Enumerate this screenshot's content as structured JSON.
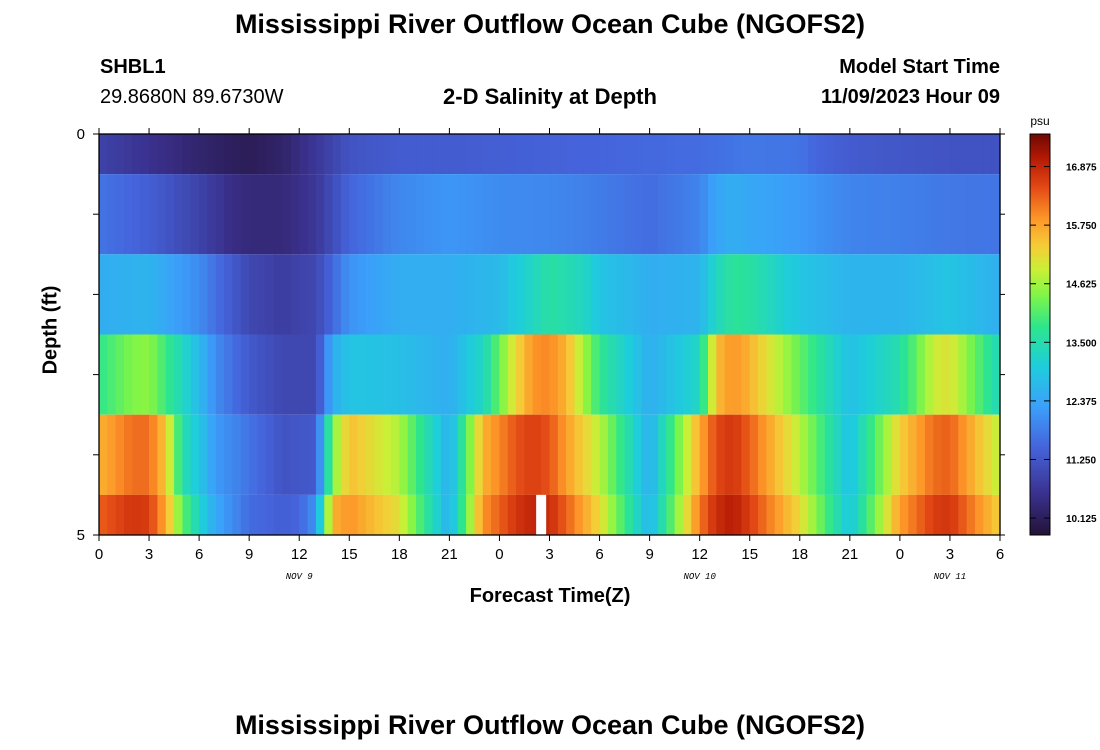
{
  "title": "Mississippi River Outflow Ocean Cube (NGOFS2)",
  "title_repeat": "Mississippi River Outflow Ocean Cube (NGOFS2)",
  "station": {
    "id": "SHBL1",
    "coords": "29.8680N  89.6730W"
  },
  "model_start": {
    "label": "Model Start Time",
    "value": "11/09/2023 Hour 09"
  },
  "chart_data": {
    "type": "heatmap",
    "title": "2-D Salinity at Depth",
    "xlabel": "Forecast Time(Z)",
    "ylabel": "Depth (ft)",
    "x_ticks": [
      "0",
      "3",
      "6",
      "9",
      "12",
      "15",
      "18",
      "21",
      "0",
      "3",
      "6",
      "9",
      "12",
      "15",
      "18",
      "21",
      "0",
      "3",
      "6"
    ],
    "day_labels": [
      {
        "label": "NOV 9",
        "at_hour": 12
      },
      {
        "label": "NOV 10",
        "at_hour": 36
      },
      {
        "label": "NOV 11",
        "at_hour": 51
      }
    ],
    "xlim_hours": [
      0,
      54
    ],
    "y_ticks": [
      "0",
      "5"
    ],
    "ylim_ft": [
      0,
      5
    ],
    "colorbar": {
      "units": "psu",
      "ticks": [
        10.125,
        11.25,
        12.375,
        13.5,
        14.625,
        15.75,
        16.875
      ],
      "range": [
        9.8,
        17.5
      ]
    },
    "gap": {
      "hour_start": 26.2,
      "hour_end": 26.8,
      "layer": 5
    },
    "layers": [
      {
        "depth_ft": [
          0.0,
          0.5
        ],
        "hours": [
          0,
          3,
          6,
          8,
          9,
          11,
          13,
          15,
          18,
          21,
          24,
          27,
          30,
          33,
          36,
          38,
          39,
          42,
          43,
          45,
          48,
          51,
          54
        ],
        "salinity": [
          10.9,
          10.6,
          10.3,
          10.15,
          10.1,
          10.25,
          10.7,
          11.2,
          11.35,
          11.35,
          11.4,
          11.45,
          11.5,
          11.55,
          11.6,
          11.7,
          11.75,
          11.7,
          11.5,
          11.35,
          11.25,
          11.2,
          11.2
        ]
      },
      {
        "depth_ft": [
          0.5,
          1.5
        ],
        "hours": [
          0,
          3,
          6,
          8,
          9,
          11,
          13,
          15,
          18,
          21,
          24,
          27,
          30,
          33,
          36,
          37,
          38,
          39,
          42,
          45,
          48,
          51,
          54
        ],
        "salinity": [
          11.7,
          11.4,
          10.9,
          10.5,
          10.4,
          10.4,
          10.7,
          11.5,
          11.95,
          12.15,
          12.0,
          11.95,
          11.8,
          11.6,
          11.9,
          12.35,
          12.5,
          12.4,
          12.2,
          11.9,
          11.85,
          11.75,
          11.7
        ]
      },
      {
        "depth_ft": [
          1.5,
          2.5
        ],
        "hours": [
          0,
          3,
          6,
          8,
          9,
          11,
          13,
          15,
          18,
          21,
          24,
          26,
          27,
          29,
          30,
          33,
          36,
          37,
          38,
          39,
          42,
          45,
          48,
          51,
          54
        ],
        "salinity": [
          12.5,
          12.6,
          12.0,
          11.3,
          11.0,
          10.8,
          11.0,
          12.1,
          12.5,
          12.5,
          12.7,
          13.3,
          13.6,
          13.3,
          12.9,
          12.5,
          12.6,
          13.3,
          13.7,
          13.6,
          12.9,
          12.6,
          12.6,
          12.9,
          12.5
        ]
      },
      {
        "depth_ft": [
          2.5,
          3.5
        ],
        "hours": [
          0,
          2,
          3,
          4,
          6,
          7,
          9,
          11,
          13,
          14,
          15,
          18,
          21,
          23,
          25,
          26,
          27,
          28,
          30,
          33,
          36,
          37,
          38,
          39,
          42,
          45,
          48,
          50,
          51,
          54
        ],
        "salinity": [
          13.8,
          14.4,
          14.5,
          13.9,
          12.7,
          12.0,
          11.3,
          11.0,
          11.0,
          12.5,
          12.9,
          12.8,
          12.5,
          13.3,
          15.2,
          15.9,
          16.0,
          15.6,
          13.8,
          12.5,
          13.3,
          15.5,
          15.9,
          15.6,
          14.2,
          12.8,
          13.5,
          14.9,
          15.1,
          13.3
        ]
      },
      {
        "depth_ft": [
          3.5,
          4.5
        ],
        "hours": [
          0,
          2,
          3,
          4,
          5,
          6,
          7,
          9,
          11,
          13,
          14,
          15,
          18,
          21,
          23,
          25,
          26,
          27,
          28,
          30,
          33,
          36,
          37,
          38,
          39,
          42,
          45,
          48,
          50,
          51,
          54
        ],
        "salinity": [
          15.6,
          16.2,
          16.2,
          15.4,
          13.5,
          12.9,
          12.2,
          11.7,
          11.2,
          11.3,
          14.4,
          15.5,
          14.7,
          12.5,
          15.6,
          16.4,
          16.6,
          16.4,
          15.8,
          14.8,
          12.5,
          15.7,
          16.5,
          16.7,
          16.3,
          14.8,
          12.8,
          15.3,
          16.2,
          16.3,
          14.8
        ]
      },
      {
        "depth_ft": [
          4.5,
          5.0
        ],
        "hours": [
          0,
          2,
          3,
          4,
          5,
          6,
          7,
          9,
          11,
          12,
          13,
          14,
          15,
          18,
          21,
          23,
          25,
          26,
          27,
          28,
          30,
          33,
          36,
          37,
          38,
          39,
          42,
          45,
          48,
          50,
          51,
          54
        ],
        "salinity": [
          16.3,
          16.7,
          16.6,
          15.7,
          14.2,
          13.2,
          12.4,
          11.6,
          11.4,
          11.5,
          12.1,
          15.6,
          15.9,
          15.1,
          12.5,
          15.9,
          16.7,
          16.9,
          16.8,
          16.3,
          15.2,
          12.6,
          16.1,
          16.8,
          17.0,
          16.6,
          15.2,
          12.9,
          15.8,
          16.6,
          16.7,
          15.3
        ]
      }
    ]
  }
}
